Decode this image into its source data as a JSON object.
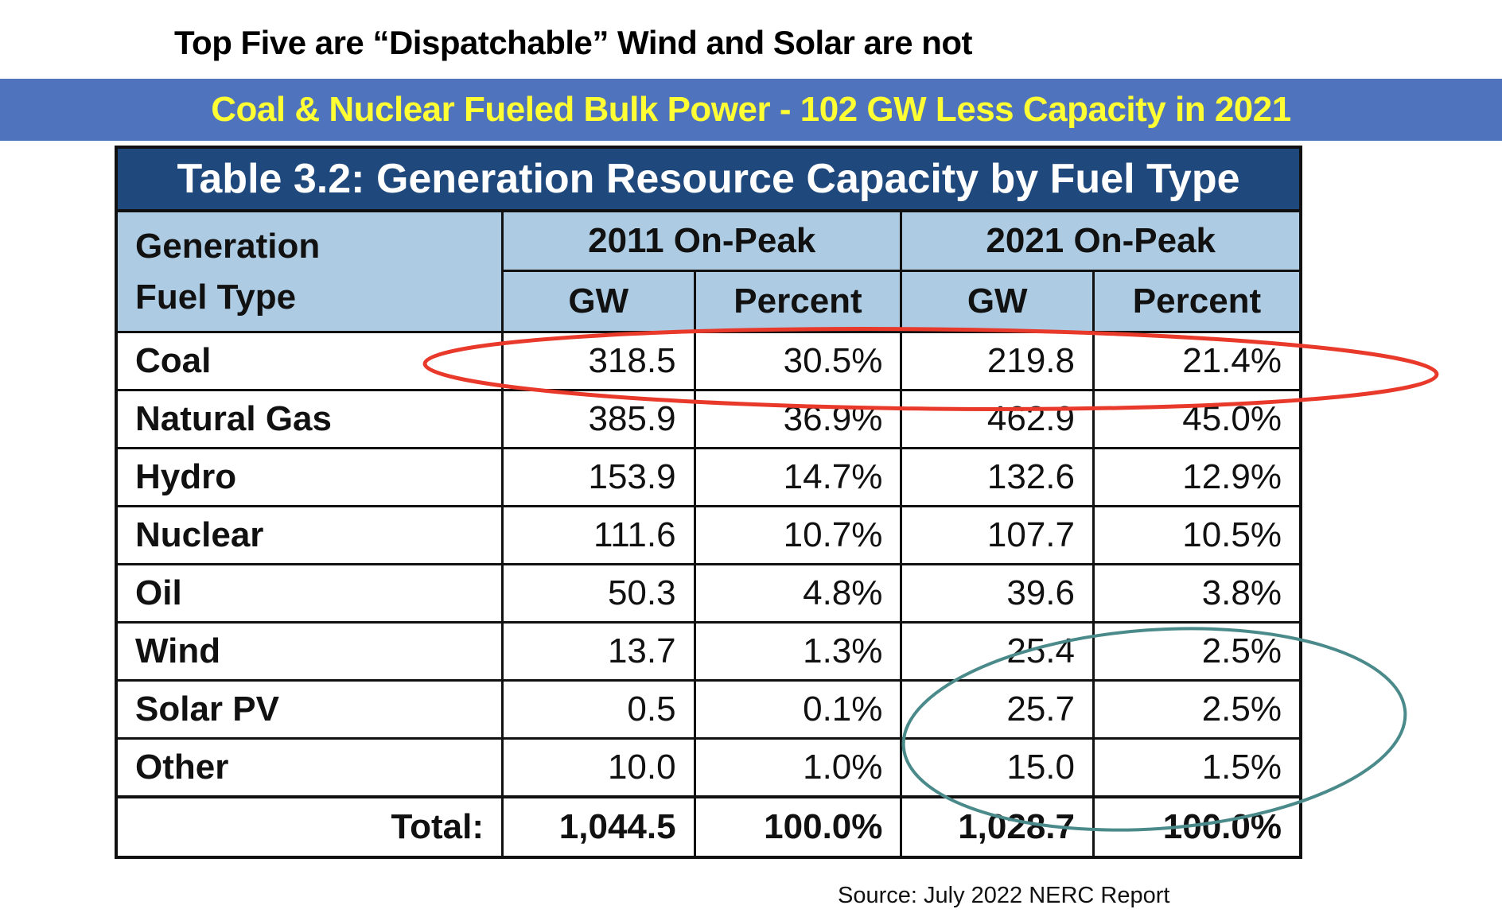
{
  "headline": "Top Five are “Dispatchable” Wind and Solar are not",
  "banner": "Coal & Nuclear Fueled Bulk Power - 102 GW Less Capacity in 2021",
  "table": {
    "title": "Table 3.2: Generation Resource Capacity by Fuel Type",
    "fuel_header": "Generation Fuel Type",
    "group_2011": "2011 On-Peak",
    "group_2021": "2021 On-Peak",
    "sub": [
      "GW",
      "Percent",
      "GW",
      "Percent"
    ],
    "rows": [
      {
        "name": "Coal",
        "v": [
          "318.5",
          "30.5%",
          "219.8",
          "21.4%"
        ]
      },
      {
        "name": "Natural Gas",
        "v": [
          "385.9",
          "36.9%",
          "462.9",
          "45.0%"
        ]
      },
      {
        "name": "Hydro",
        "v": [
          "153.9",
          "14.7%",
          "132.6",
          "12.9%"
        ]
      },
      {
        "name": "Nuclear",
        "v": [
          "111.6",
          "10.7%",
          "107.7",
          "10.5%"
        ]
      },
      {
        "name": "Oil",
        "v": [
          "50.3",
          "4.8%",
          "39.6",
          "3.8%"
        ]
      },
      {
        "name": "Wind",
        "v": [
          "13.7",
          "1.3%",
          "25.4",
          "2.5%"
        ]
      },
      {
        "name": "Solar PV",
        "v": [
          "0.5",
          "0.1%",
          "25.7",
          "2.5%"
        ]
      },
      {
        "name": "Other",
        "v": [
          "10.0",
          "1.0%",
          "15.0",
          "1.5%"
        ]
      }
    ],
    "total": {
      "name": "Total:",
      "v": [
        "1,044.5",
        "100.0%",
        "1,028.7",
        "100.0%"
      ]
    }
  },
  "source": "Source: July 2022 NERC Report",
  "colors": {
    "band": "#4f74bd",
    "banner_text": "#ffff33",
    "title_bg": "#1f497d",
    "header_bg": "#adcce3",
    "red_ellipse": "#e8392b",
    "teal_ellipse": "#4a8a8a"
  }
}
